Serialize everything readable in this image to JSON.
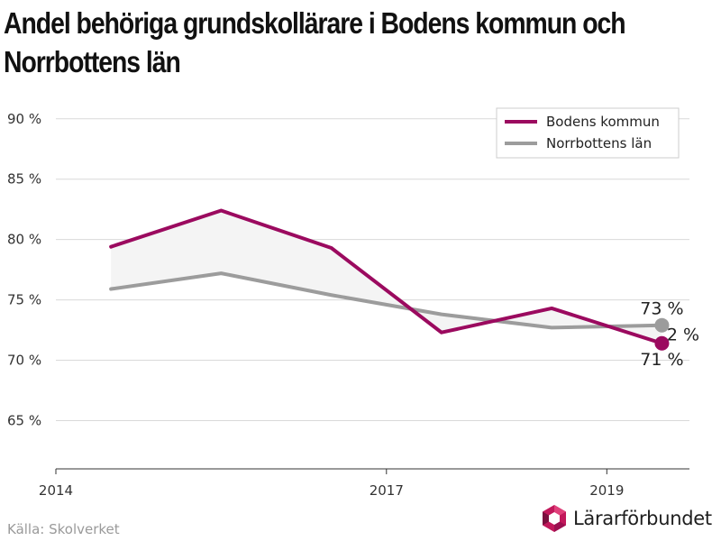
{
  "title_lines": [
    "Andel behöriga grundskollärare i Bodens kommun och",
    "Norrbottens län"
  ],
  "source": "Källa: Skolverket",
  "logo_text": "Lärarförbundet",
  "colors": {
    "boden": "#9b0a5f",
    "norrbotten": "#9c9c9c",
    "band": "#f4f4f4",
    "grid": "#d9d9d9"
  },
  "chart_data": {
    "type": "line",
    "title": "Andel behöriga grundskollärare i Bodens kommun och Norrbottens län",
    "xlabel": "",
    "ylabel": "",
    "x": [
      2014.5,
      2015.5,
      2016.5,
      2017.5,
      2018.5,
      2019.5
    ],
    "xlim": [
      2014,
      2019.75
    ],
    "xticks": [
      2014,
      2017,
      2019
    ],
    "xtick_labels": [
      "2014",
      "2017",
      "2019"
    ],
    "ylim": [
      61,
      92
    ],
    "yticks": [
      65,
      70,
      75,
      80,
      85,
      90
    ],
    "ytick_labels": [
      "65 %",
      "70 %",
      "75 %",
      "80 %",
      "85 %",
      "90 %"
    ],
    "grid": true,
    "legend": "top-right",
    "series": [
      {
        "name": "Bodens kommun",
        "color_key": "boden",
        "values": [
          79.4,
          82.4,
          79.3,
          72.3,
          74.3,
          71.4
        ],
        "end_label": "71 %"
      },
      {
        "name": "Norrbottens län",
        "color_key": "norrbotten",
        "values": [
          75.9,
          77.2,
          75.4,
          73.8,
          72.7,
          72.9
        ],
        "end_label": "73 %"
      }
    ],
    "diff_label": "2 %"
  }
}
